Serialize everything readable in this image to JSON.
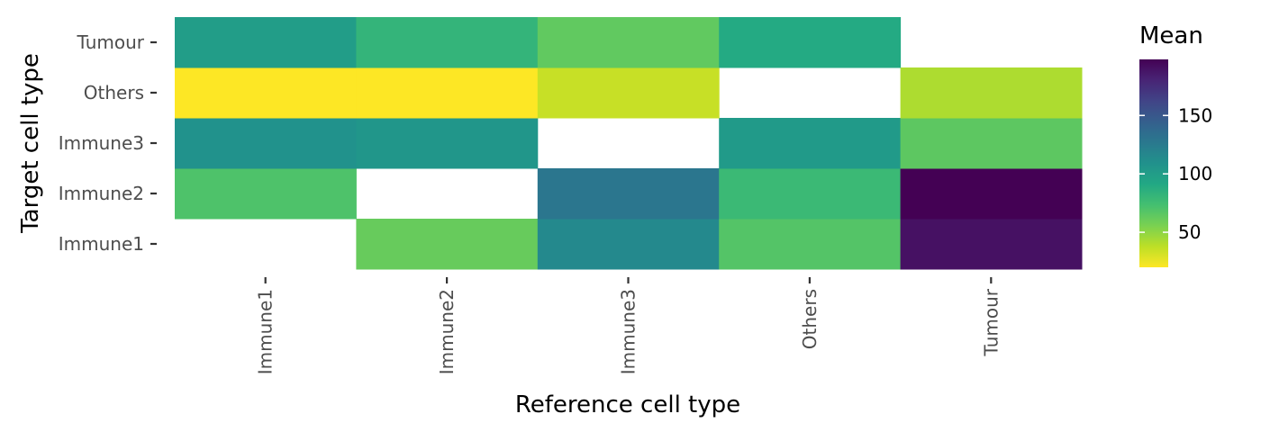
{
  "chart_data": {
    "type": "heatmap",
    "x_categories": [
      "Immune1",
      "Immune2",
      "Immune3",
      "Others",
      "Tumour"
    ],
    "y_categories": [
      "Immune1",
      "Immune2",
      "Immune3",
      "Others",
      "Tumour"
    ],
    "values": [
      [
        null,
        62,
        115,
        68,
        190
      ],
      [
        70,
        null,
        128,
        78,
        198
      ],
      [
        108,
        105,
        null,
        102,
        65
      ],
      [
        20,
        20,
        35,
        null,
        42
      ],
      [
        100,
        82,
        64,
        90,
        null
      ]
    ],
    "xlabel": "Reference cell type",
    "ylabel": "Target cell type",
    "legend": {
      "title": "Mean",
      "ticks": [
        50,
        100,
        150
      ],
      "range": [
        20,
        198
      ],
      "colormap": "viridis-reversed",
      "placement": "right"
    }
  }
}
